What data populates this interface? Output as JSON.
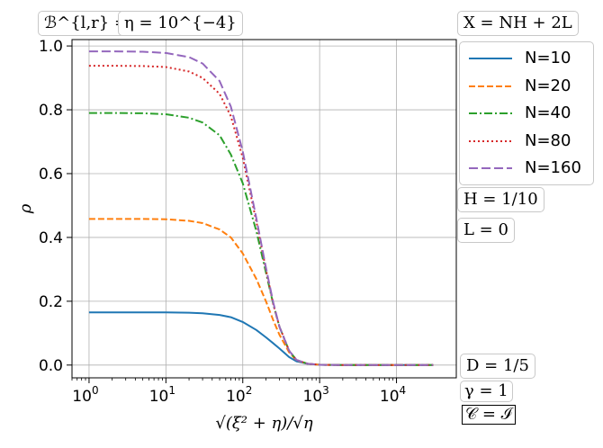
{
  "annotations": {
    "bc": "ℬ^{l,r} = ℐ",
    "eta": "η = 10^{−4}",
    "x_def": "X = NH + 2L",
    "H": "H = 1/10",
    "L": "L = 0",
    "D": "D = 1/5",
    "gamma": "γ = 1",
    "C": "𝒞 = ℐ"
  },
  "chart_data": {
    "type": "line",
    "xscale": "log",
    "xlabel": "√(ξ² + η)/√η",
    "ylabel": "ρ",
    "xlim": [
      0.6,
      60000
    ],
    "ylim": [
      -0.04,
      1.02
    ],
    "xticks": [
      1,
      10,
      100,
      1000,
      10000
    ],
    "xtick_labels": [
      "10^0",
      "10^1",
      "10^2",
      "10^3",
      "10^4"
    ],
    "yticks": [
      0.0,
      0.2,
      0.4,
      0.6,
      0.8,
      1.0
    ],
    "ytick_labels": [
      "0.0",
      "0.2",
      "0.4",
      "0.6",
      "0.8",
      "1.0"
    ],
    "grid": true,
    "legend_position": "outside right, top",
    "x": [
      1,
      2,
      5,
      10,
      20,
      30,
      50,
      70,
      100,
      150,
      200,
      250,
      300,
      400,
      500,
      700,
      1000,
      2000,
      5000,
      10000,
      30000
    ],
    "series": [
      {
        "name": "N=10",
        "color": "#1f77b4",
        "dash": "solid",
        "values": [
          0.165,
          0.165,
          0.165,
          0.165,
          0.164,
          0.162,
          0.157,
          0.15,
          0.135,
          0.11,
          0.087,
          0.068,
          0.052,
          0.025,
          0.012,
          0.004,
          0.001,
          0.0,
          0.0,
          0.0,
          0.0
        ]
      },
      {
        "name": "N=20",
        "color": "#ff7f0e",
        "dash": "dashed",
        "values": [
          0.458,
          0.458,
          0.458,
          0.457,
          0.452,
          0.445,
          0.425,
          0.4,
          0.35,
          0.27,
          0.2,
          0.14,
          0.095,
          0.04,
          0.015,
          0.004,
          0.001,
          0.0,
          0.0,
          0.0,
          0.0
        ]
      },
      {
        "name": "N=40",
        "color": "#2ca02c",
        "dash": "dashdot",
        "values": [
          0.79,
          0.79,
          0.789,
          0.786,
          0.775,
          0.76,
          0.72,
          0.66,
          0.57,
          0.42,
          0.29,
          0.19,
          0.12,
          0.045,
          0.016,
          0.004,
          0.001,
          0.0,
          0.0,
          0.0,
          0.0
        ]
      },
      {
        "name": "N=80",
        "color": "#d62728",
        "dash": "dotted",
        "values": [
          0.938,
          0.938,
          0.937,
          0.934,
          0.92,
          0.9,
          0.85,
          0.78,
          0.65,
          0.45,
          0.3,
          0.19,
          0.12,
          0.045,
          0.016,
          0.004,
          0.001,
          0.0,
          0.0,
          0.0,
          0.0
        ]
      },
      {
        "name": "N=160",
        "color": "#9467bd",
        "dash": "longdash",
        "values": [
          0.983,
          0.983,
          0.982,
          0.978,
          0.965,
          0.945,
          0.89,
          0.81,
          0.67,
          0.46,
          0.305,
          0.195,
          0.12,
          0.045,
          0.016,
          0.004,
          0.001,
          0.0,
          0.0,
          0.0,
          0.0
        ]
      }
    ]
  }
}
